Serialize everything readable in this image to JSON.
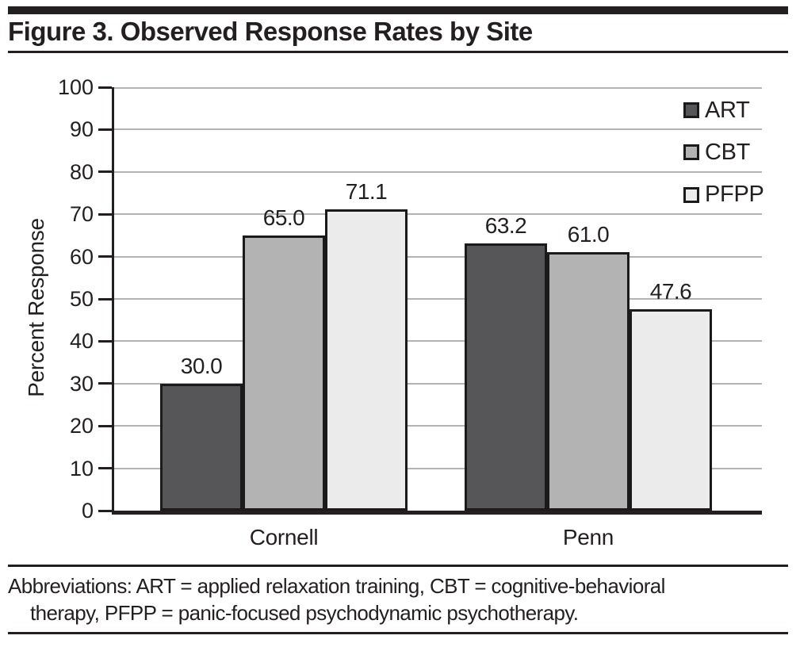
{
  "header": {
    "title": "Figure 3. Observed Response Rates by Site"
  },
  "chart_data": {
    "type": "bar",
    "title": "Figure 3. Observed Response Rates by Site",
    "categories": [
      "Cornell",
      "Penn"
    ],
    "series": [
      {
        "name": "ART",
        "color": "#565658",
        "values": [
          30.0,
          63.2
        ],
        "labels": [
          "30.0",
          "63.2"
        ]
      },
      {
        "name": "CBT",
        "color": "#b3b3b3",
        "values": [
          65.0,
          61.0
        ],
        "labels": [
          "65.0",
          "61.0"
        ]
      },
      {
        "name": "PFPP",
        "color": "#ebebeb",
        "values": [
          71.1,
          47.6
        ],
        "labels": [
          "71.1",
          "47.6"
        ]
      }
    ],
    "xlabel": "",
    "ylabel": "Percent Response",
    "ylim": [
      0,
      100
    ],
    "ytick_step": 10,
    "ytick_labels": [
      "0",
      "10",
      "20",
      "30",
      "40",
      "50",
      "60",
      "70",
      "80",
      "90",
      "100"
    ],
    "grid": "horizontal",
    "legend_position": "top-right",
    "legend_entries": [
      "ART",
      "CBT",
      "PFPP"
    ]
  },
  "footer": {
    "lines": [
      "Abbreviations: ART = applied relaxation training, CBT = cognitive-behavioral",
      "therapy, PFPP = panic-focused psychodynamic psychotherapy."
    ]
  },
  "colors": {
    "text": "#231f20",
    "rule": "#231f20",
    "gridline": "#b3b3b3",
    "bar_border": "#1a1a1a",
    "background": "#ffffff"
  }
}
